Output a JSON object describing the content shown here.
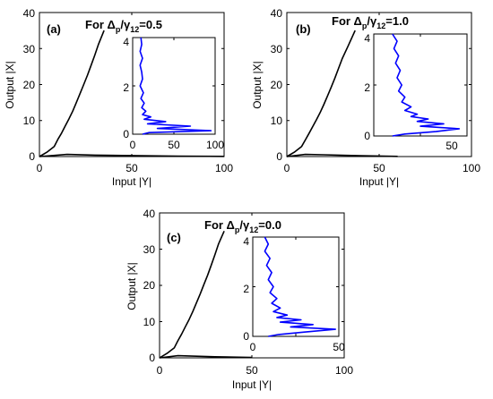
{
  "chart_data": [
    {
      "type": "line",
      "panel_label": "(a)",
      "title_prefix": "For Δ",
      "title_sub1": "p",
      "title_mid": "/γ",
      "title_sub2": "12",
      "title_suffix": "=0.5",
      "xlabel": "Input |Y|",
      "ylabel": "Output |X|",
      "xlim": [
        0,
        100
      ],
      "ylim": [
        0,
        40
      ],
      "xticks": [
        "0",
        "50",
        "100"
      ],
      "yticks": [
        "0",
        "10",
        "20",
        "30",
        "40"
      ],
      "series": [
        {
          "color": "#000000",
          "x": [
            0,
            4,
            8,
            10,
            12,
            14,
            16,
            18,
            20,
            22,
            24,
            26,
            28,
            30,
            32,
            35
          ],
          "y": [
            0,
            1.2,
            2.8,
            4.8,
            6.5,
            8.5,
            10.5,
            12.6,
            15,
            17.5,
            20,
            22.6,
            25.4,
            28.2,
            31.2,
            35
          ]
        },
        {
          "color": "#000000",
          "x": [
            0,
            15,
            30,
            45,
            60,
            75,
            100
          ],
          "y": [
            0,
            0.6,
            0.4,
            0.3,
            0.2,
            0.12,
            0.05
          ]
        }
      ],
      "inset": {
        "xlim": [
          0,
          100
        ],
        "ylim": [
          0,
          4.2
        ],
        "xticks": [
          "0",
          "50",
          "100"
        ],
        "yticks": [
          "0",
          "2",
          "4"
        ],
        "series": [
          {
            "color": "#0000ff",
            "x": [
              10,
              11,
              9,
              12,
              9,
              11,
              12,
              9,
              13,
              10,
              14,
              11,
              16,
              12,
              22,
              14,
              40,
              18,
              70,
              30,
              95,
              20,
              12
            ],
            "y": [
              4.2,
              3.9,
              3.6,
              3.3,
              3.0,
              2.7,
              2.4,
              2.1,
              1.8,
              1.55,
              1.35,
              1.15,
              1.0,
              0.85,
              0.75,
              0.65,
              0.55,
              0.45,
              0.35,
              0.25,
              0.15,
              0.07,
              0
            ]
          }
        ]
      }
    },
    {
      "type": "line",
      "panel_label": "(b)",
      "title_prefix": "For Δ",
      "title_sub1": "p",
      "title_mid": "/γ",
      "title_sub2": "12",
      "title_suffix": "=1.0",
      "xlabel": "Input |Y|",
      "ylabel": "Output |X|",
      "xlim": [
        0,
        100
      ],
      "ylim": [
        0,
        40
      ],
      "xticks": [
        "0",
        "50",
        "100"
      ],
      "yticks": [
        "0",
        "10",
        "20",
        "30",
        "40"
      ],
      "series": [
        {
          "color": "#000000",
          "x": [
            0,
            4,
            8,
            10,
            12,
            14,
            16,
            18,
            20,
            22,
            24,
            26,
            28,
            30,
            33,
            37
          ],
          "y": [
            0,
            1.2,
            2.8,
            4.6,
            6.4,
            8.3,
            10.2,
            12.2,
            14.4,
            16.8,
            19.2,
            21.8,
            24.5,
            27.2,
            30.5,
            35
          ]
        },
        {
          "color": "#000000",
          "x": [
            0,
            10,
            20,
            30,
            40,
            50,
            60
          ],
          "y": [
            0,
            0.6,
            0.5,
            0.35,
            0.25,
            0.15,
            0.05
          ]
        }
      ],
      "inset": {
        "xlim": [
          0,
          60
        ],
        "ylim": [
          0,
          4.2
        ],
        "xticks": [
          "50"
        ],
        "yticks": [
          "0",
          "2",
          "4"
        ],
        "series": [
          {
            "color": "#0000ff",
            "x": [
              12,
              15,
              13,
              16,
              14,
              17,
              15,
              18,
              16,
              20,
              18,
              24,
              20,
              28,
              24,
              35,
              28,
              45,
              30,
              55,
              40,
              20,
              12
            ],
            "y": [
              4.2,
              3.9,
              3.6,
              3.3,
              3.0,
              2.7,
              2.4,
              2.1,
              1.85,
              1.6,
              1.4,
              1.2,
              1.05,
              0.9,
              0.8,
              0.7,
              0.6,
              0.5,
              0.4,
              0.3,
              0.18,
              0.08,
              0
            ]
          }
        ]
      }
    },
    {
      "type": "line",
      "panel_label": "(c)",
      "title_prefix": "For Δ",
      "title_sub1": "p",
      "title_mid": "/γ",
      "title_sub2": "12",
      "title_suffix": "=0.0",
      "xlabel": "Input |Y|",
      "ylabel": "Output |X|",
      "xlim": [
        0,
        100
      ],
      "ylim": [
        0,
        40
      ],
      "xticks": [
        "0",
        "50",
        "100"
      ],
      "yticks": [
        "0",
        "10",
        "20",
        "30",
        "40"
      ],
      "series": [
        {
          "color": "#000000",
          "x": [
            0,
            4,
            8,
            10,
            12,
            14,
            16,
            18,
            20,
            22,
            24,
            26,
            28,
            30,
            32,
            35
          ],
          "y": [
            0,
            1.2,
            2.8,
            4.8,
            6.6,
            8.6,
            10.6,
            12.8,
            15.2,
            17.6,
            20.2,
            22.8,
            25.6,
            28.5,
            31.5,
            35
          ]
        },
        {
          "color": "#000000",
          "x": [
            0,
            10,
            20,
            30,
            40,
            50
          ],
          "y": [
            0,
            0.6,
            0.45,
            0.3,
            0.2,
            0.1
          ]
        }
      ],
      "inset": {
        "xlim": [
          0,
          50
        ],
        "ylim": [
          0,
          4.2
        ],
        "xticks": [
          "0",
          "50"
        ],
        "yticks": [
          "0",
          "2",
          "4"
        ],
        "series": [
          {
            "color": "#0000ff",
            "x": [
              7,
              9,
              7,
              10,
              8,
              11,
              9,
              12,
              10,
              14,
              11,
              16,
              12,
              20,
              14,
              28,
              16,
              35,
              22,
              48,
              30,
              15,
              9
            ],
            "y": [
              4.2,
              3.9,
              3.6,
              3.3,
              3.0,
              2.7,
              2.4,
              2.1,
              1.85,
              1.6,
              1.4,
              1.2,
              1.05,
              0.9,
              0.8,
              0.7,
              0.6,
              0.5,
              0.4,
              0.3,
              0.18,
              0.08,
              0
            ]
          }
        ]
      }
    }
  ]
}
